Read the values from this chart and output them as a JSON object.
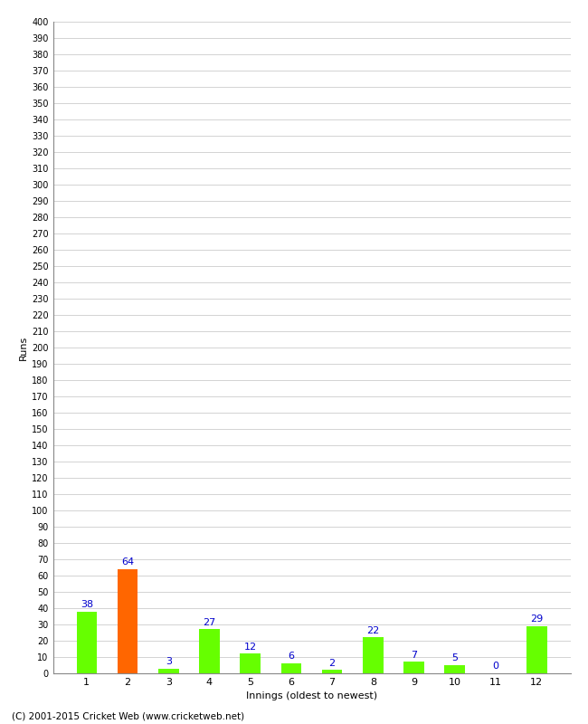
{
  "categories": [
    "1",
    "2",
    "3",
    "4",
    "5",
    "6",
    "7",
    "8",
    "9",
    "10",
    "11",
    "12"
  ],
  "values": [
    38,
    64,
    3,
    27,
    12,
    6,
    2,
    22,
    7,
    5,
    0,
    29
  ],
  "bar_colors": [
    "#66ff00",
    "#ff6600",
    "#66ff00",
    "#66ff00",
    "#66ff00",
    "#66ff00",
    "#66ff00",
    "#66ff00",
    "#66ff00",
    "#66ff00",
    "#66ff00",
    "#66ff00"
  ],
  "xlabel": "Innings (oldest to newest)",
  "ylabel": "Runs",
  "ylim": [
    0,
    400
  ],
  "ytick_step": 10,
  "background_color": "#ffffff",
  "grid_color": "#cccccc",
  "label_color": "#0000cc",
  "footer": "(C) 2001-2015 Cricket Web (www.cricketweb.net)"
}
